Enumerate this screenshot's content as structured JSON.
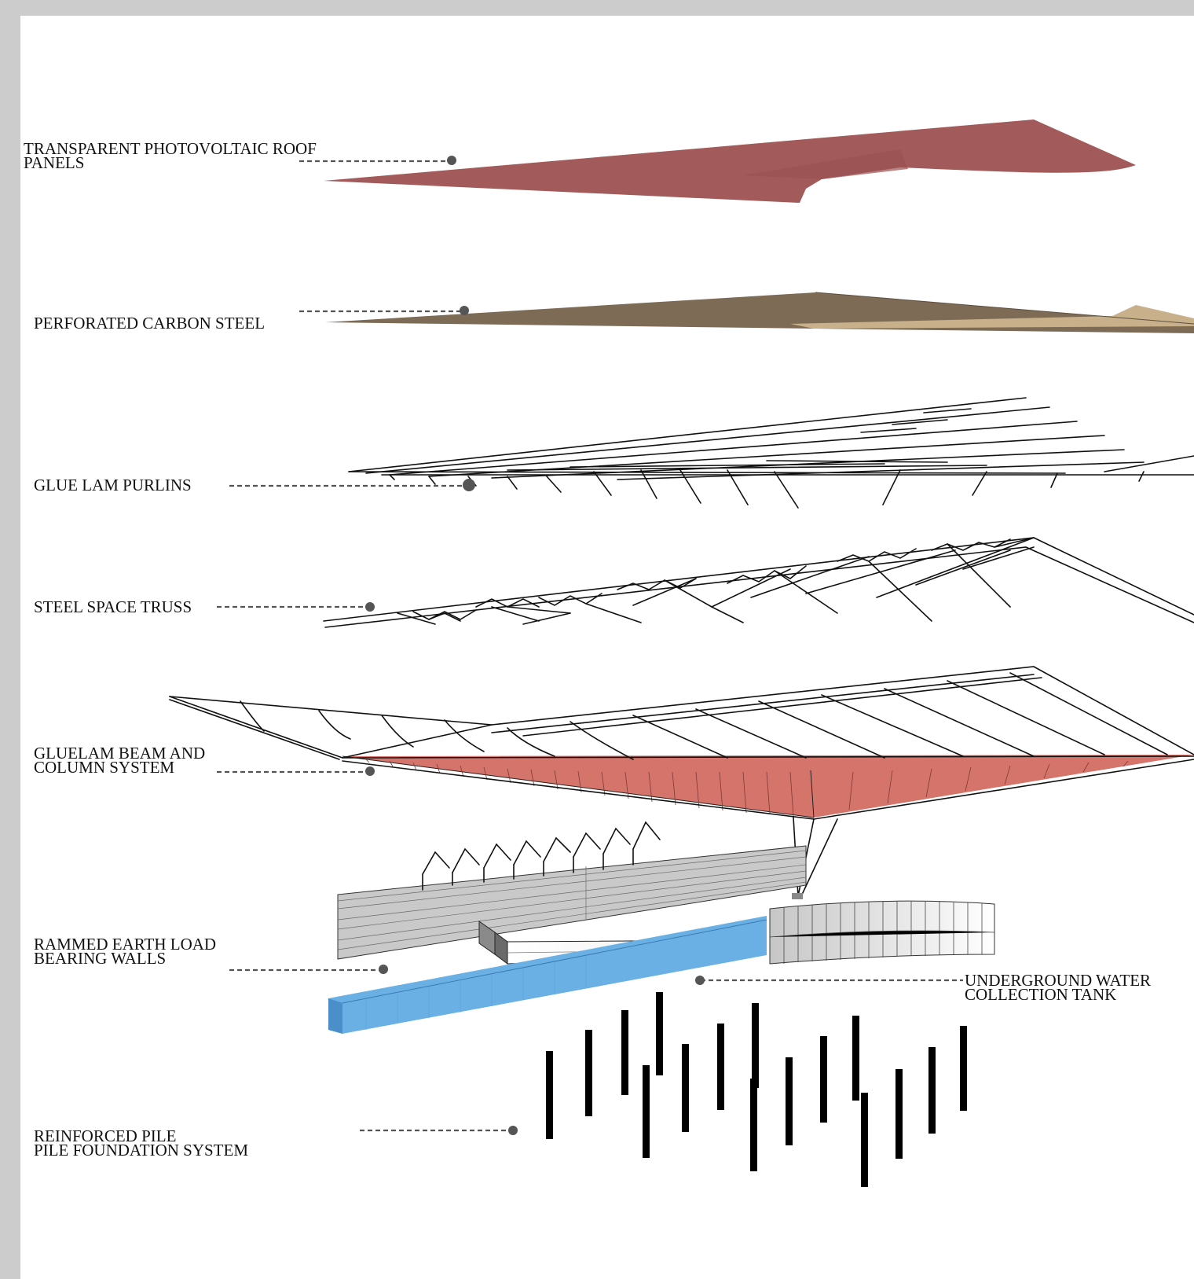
{
  "labels": {
    "roof": [
      "TRANSPARENT PHOTOVOLTAIC ROOF",
      "PANELS"
    ],
    "steel": [
      "PERFORATED CARBON STEEL"
    ],
    "purlins": [
      "GLUE LAM PURLINS"
    ],
    "truss": [
      "STEEL SPACE TRUSS"
    ],
    "gluelam": [
      "GLUELAM BEAM AND",
      "COLUMN  SYSTEM"
    ],
    "walls": [
      "RAMMED EARTH  LOAD",
      "BEARING WALLS"
    ],
    "tank": [
      "UNDERGROUND WATER",
      "COLLECTION TANK"
    ],
    "piles": [
      "REINFORCED PILE",
      "PILE FOUNDATION SYSTEM"
    ]
  },
  "colors": {
    "roof": "#a35a5a",
    "steel": "#7d6b55",
    "steel_light": "#c8b08a",
    "gluelam_fill": "#d5746a",
    "wall": "#c9c9c9",
    "tank": "#6ab0e4",
    "leader": "#555555"
  }
}
